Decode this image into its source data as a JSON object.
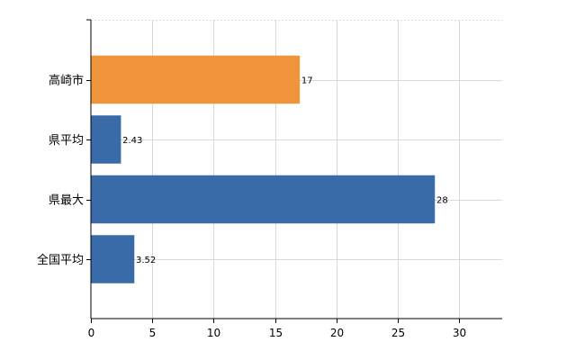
{
  "chart_data": {
    "type": "bar",
    "orientation": "horizontal",
    "categories": [
      "高崎市",
      "県平均",
      "県最大",
      "全国平均"
    ],
    "values": [
      17,
      2.43,
      28,
      3.52
    ],
    "value_labels": [
      "17",
      "2.43",
      "28",
      "3.52"
    ],
    "bar_colors": [
      "#f0943c",
      "#3a6ba9",
      "#3a6ba9",
      "#3a6ba9"
    ],
    "xlim": [
      0,
      33.5
    ],
    "x_ticks": [
      0,
      5,
      10,
      15,
      20,
      25,
      30
    ],
    "x_tick_labels": [
      "0",
      "5",
      "10",
      "15",
      "20",
      "25",
      "30"
    ],
    "grid": true,
    "title": "",
    "xlabel": "",
    "ylabel": ""
  }
}
